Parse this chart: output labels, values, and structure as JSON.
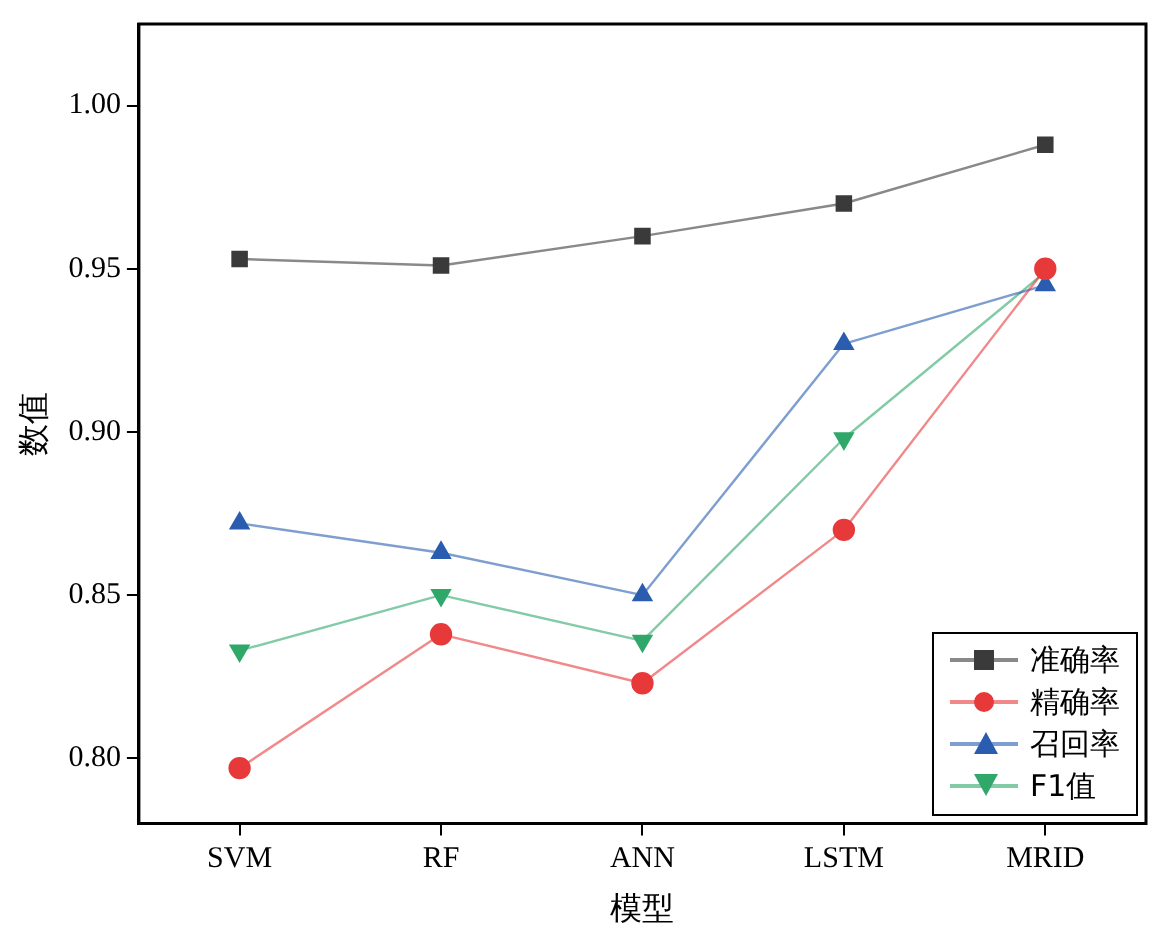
{
  "chart_data": {
    "type": "line",
    "xlabel": "模型",
    "ylabel": "数值",
    "categories": [
      "SVM",
      "RF",
      "ANN",
      "LSTM",
      "MRID"
    ],
    "series": [
      {
        "name": "准确率",
        "color": "#3a3a3a",
        "marker": "square",
        "values": [
          0.953,
          0.951,
          0.96,
          0.97,
          0.988
        ]
      },
      {
        "name": "精确率",
        "color": "#e8393a",
        "marker": "circle",
        "values": [
          0.797,
          0.838,
          0.823,
          0.87,
          0.95
        ]
      },
      {
        "name": "召回率",
        "color": "#2a5db0",
        "marker": "triangle",
        "values": [
          0.872,
          0.863,
          0.85,
          0.927,
          0.945
        ]
      },
      {
        "name": "F1值",
        "color": "#2fa86a",
        "marker": "triangle-down",
        "values": [
          0.833,
          0.85,
          0.836,
          0.898,
          0.949
        ]
      }
    ],
    "ylim": [
      0.78,
      1.025
    ],
    "yticks": [
      {
        "value": 0.8,
        "label": "0.80"
      },
      {
        "value": 0.85,
        "label": "0.85"
      },
      {
        "value": 0.9,
        "label": "0.90"
      },
      {
        "value": 0.95,
        "label": "0.95"
      },
      {
        "value": 1.0,
        "label": "1.00"
      }
    ],
    "grid": false,
    "legend": "bottom right"
  }
}
